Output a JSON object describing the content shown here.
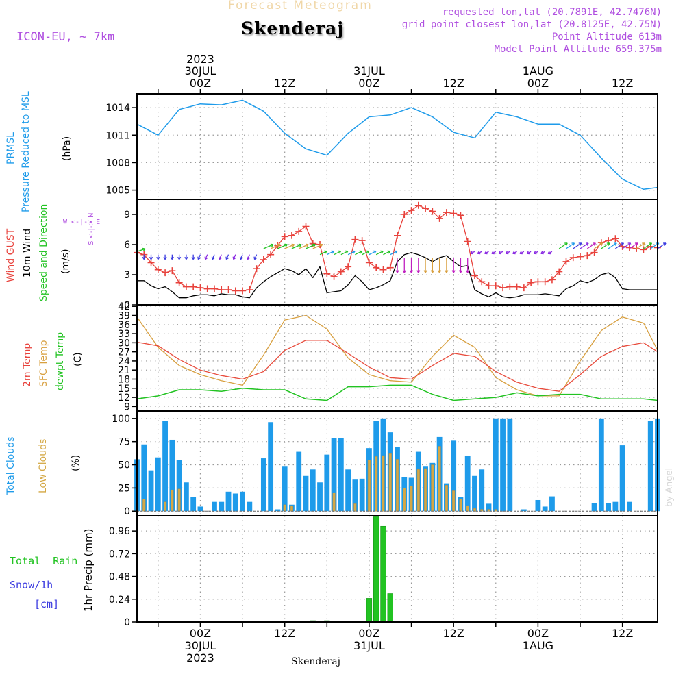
{
  "header": {
    "title_top": "Forecast Meteogram",
    "location": "Skenderaj",
    "model": "ICON-EU, ~ 7km",
    "requested": "requested lon,lat (20.7891E, 42.7476N)",
    "gridpoint": "grid point closest lon,lat (20.8125E, 42.75N)",
    "point_alt": "Point Altitude 613m",
    "model_alt": "Model Point Altitude 659.375m",
    "bottom_label": "Skenderaj",
    "watermark": "by Angel"
  },
  "time_axis": {
    "top_labels": [
      {
        "line1": "2023",
        "line2": "30JUL",
        "line3": "00Z",
        "hour": 24
      },
      {
        "line1": "",
        "line2": "",
        "line3": "12Z",
        "hour": 36
      },
      {
        "line1": "",
        "line2": "31JUL",
        "line3": "00Z",
        "hour": 48
      },
      {
        "line1": "",
        "line2": "",
        "line3": "12Z",
        "hour": 60
      },
      {
        "line1": "",
        "line2": "1AUG",
        "line3": "00Z",
        "hour": 72
      },
      {
        "line1": "",
        "line2": "",
        "line3": "12Z",
        "hour": 84
      }
    ],
    "bottom_labels": [
      {
        "line1": "00Z",
        "line2": "30JUL",
        "line3": "2023",
        "hour": 24
      },
      {
        "line1": "12Z",
        "line2": "",
        "line3": "",
        "hour": 36
      },
      {
        "line1": "00Z",
        "line2": "31JUL",
        "line3": "",
        "hour": 48
      },
      {
        "line1": "12Z",
        "line2": "",
        "line3": "",
        "hour": 60
      },
      {
        "line1": "00Z",
        "line2": "1AUG",
        "line3": "",
        "hour": 72
      },
      {
        "line1": "12Z",
        "line2": "",
        "line3": "",
        "hour": 84
      }
    ]
  },
  "panels": {
    "pressure": {
      "label1": "PRMSL",
      "label2": "Pressure Reduced to MSL",
      "unit": "(hPa)",
      "ticks": [
        "1005",
        "1008",
        "1011",
        "1014"
      ]
    },
    "wind": {
      "label_gust": "Wind GUST",
      "label_10m": "10m Wind",
      "label_speed": "Speed and Direction",
      "unit": "(m/s)",
      "compass_ns": "S <-|-> N",
      "compass_we": "W <-|-> E",
      "ticks": [
        "0",
        "3",
        "6",
        "9"
      ]
    },
    "temp": {
      "label_2m": "2m Temp",
      "label_sfc": "SFC Temp",
      "label_dew": "dewpt Temp",
      "unit": "(C)",
      "ticks": [
        "9",
        "12",
        "15",
        "18",
        "21",
        "24",
        "27",
        "30",
        "33",
        "36",
        "39",
        "42"
      ]
    },
    "clouds": {
      "label_total": "Total Clouds",
      "label_low": "Low Clouds",
      "unit": "(%)",
      "ticks": [
        "0",
        "25",
        "50",
        "75",
        "100"
      ]
    },
    "precip": {
      "label_rain": "Total  Rain",
      "label_snow": "Snow/1h",
      "label_cm": "[cm]",
      "unit": "1hr Precip (mm)",
      "ticks": [
        "0",
        "0.24",
        "0.48",
        "0.72",
        "0.96"
      ]
    }
  },
  "colors": {
    "pressure": "#1e9bea",
    "gust": "#e8423c",
    "wind10": "#000000",
    "temp2m": "#e84b3c",
    "sfc": "#d8a040",
    "dew": "#22c322",
    "total_cloud": "#1e9bea",
    "low_cloud": "#d4a845",
    "rain": "#22c322",
    "title_top": "#f0d7a8",
    "meta": "#b050e0"
  },
  "chart_data": [
    {
      "type": "line",
      "name": "PRMSL",
      "ylim": [
        1004,
        1015.5
      ],
      "x_hours": [
        15,
        18,
        21,
        24,
        27,
        30,
        33,
        36,
        39,
        42,
        45,
        48,
        51,
        54,
        57,
        60,
        63,
        66,
        69,
        72,
        75,
        78,
        81,
        84,
        87,
        89
      ],
      "values": [
        1012.2,
        1011.0,
        1013.8,
        1014.4,
        1014.3,
        1014.8,
        1013.6,
        1011.2,
        1009.5,
        1008.8,
        1011.2,
        1013.0,
        1013.2,
        1014.0,
        1013.0,
        1011.3,
        1010.7,
        1013.5,
        1013.0,
        1012.2,
        1012.2,
        1011.0,
        1008.5,
        1006.2,
        1005.1,
        1005.3
      ]
    },
    {
      "type": "line",
      "name": "Wind GUST",
      "ylim": [
        0,
        10.5
      ],
      "x_hours": [
        15,
        16,
        17,
        18,
        19,
        20,
        21,
        22,
        23,
        24,
        25,
        26,
        27,
        28,
        29,
        30,
        31,
        32,
        33,
        34,
        35,
        36,
        37,
        38,
        39,
        40,
        41,
        42,
        43,
        44,
        45,
        46,
        47,
        48,
        49,
        50,
        51,
        52,
        53,
        54,
        55,
        56,
        57,
        58,
        59,
        60,
        61,
        62,
        63,
        64,
        65,
        66,
        67,
        68,
        69,
        70,
        71,
        72,
        73,
        74,
        75,
        76,
        77,
        78,
        79,
        80,
        81,
        82,
        83,
        84,
        85,
        86,
        87,
        88,
        89
      ],
      "values": [
        5.2,
        5.0,
        4.2,
        3.5,
        3.2,
        3.4,
        2.2,
        1.8,
        1.8,
        1.7,
        1.6,
        1.6,
        1.5,
        1.5,
        1.4,
        1.4,
        1.5,
        3.6,
        4.5,
        5.0,
        5.9,
        6.8,
        6.9,
        7.3,
        7.8,
        6.1,
        6.0,
        3.1,
        2.8,
        3.3,
        3.8,
        6.5,
        6.4,
        4.2,
        3.7,
        3.5,
        3.7,
        6.9,
        9.0,
        9.4,
        9.9,
        9.6,
        9.3,
        8.6,
        9.2,
        9.1,
        8.9,
        6.3,
        2.9,
        2.3,
        1.9,
        1.9,
        1.7,
        1.8,
        1.8,
        1.7,
        2.2,
        2.3,
        2.3,
        2.5,
        3.3,
        4.3,
        4.7,
        4.8,
        4.9,
        5.2,
        6.2,
        6.4,
        6.6,
        5.8,
        5.7,
        5.6,
        5.5,
        5.8,
        5.7
      ]
    },
    {
      "type": "line",
      "name": "10m Wind",
      "ylim": [
        0,
        10.5
      ],
      "x_hours": [
        15,
        16,
        17,
        18,
        19,
        20,
        21,
        22,
        23,
        24,
        25,
        26,
        27,
        28,
        29,
        30,
        31,
        32,
        33,
        34,
        35,
        36,
        37,
        38,
        39,
        40,
        41,
        42,
        43,
        44,
        45,
        46,
        47,
        48,
        49,
        50,
        51,
        52,
        53,
        54,
        55,
        56,
        57,
        58,
        59,
        60,
        61,
        62,
        63,
        64,
        65,
        66,
        67,
        68,
        69,
        70,
        71,
        72,
        73,
        74,
        75,
        76,
        77,
        78,
        79,
        80,
        81,
        82,
        83,
        84,
        85,
        86,
        87,
        88,
        89
      ],
      "values": [
        2.4,
        2.4,
        1.9,
        1.6,
        1.8,
        1.3,
        0.7,
        0.7,
        0.9,
        1.0,
        1.0,
        0.9,
        1.1,
        1.0,
        1.0,
        0.8,
        0.7,
        1.7,
        2.3,
        2.8,
        3.2,
        3.6,
        3.4,
        3.0,
        3.6,
        2.7,
        3.8,
        1.2,
        1.3,
        1.4,
        2.0,
        2.9,
        2.3,
        1.5,
        1.7,
        2.0,
        2.4,
        4.3,
        5.0,
        5.2,
        5.0,
        4.7,
        4.3,
        4.7,
        4.9,
        4.3,
        3.8,
        3.9,
        1.5,
        1.1,
        0.8,
        1.2,
        0.8,
        0.7,
        0.8,
        1.0,
        1.0,
        1.0,
        1.1,
        1.0,
        0.9,
        1.6,
        1.9,
        2.4,
        2.2,
        2.5,
        3.0,
        3.2,
        2.7,
        1.6,
        1.5,
        1.5,
        1.5,
        1.5,
        1.5
      ]
    },
    {
      "type": "line",
      "name": "2m Temp",
      "ylim": [
        7.5,
        42.5
      ],
      "x_hours": [
        15,
        18,
        21,
        24,
        27,
        30,
        33,
        36,
        39,
        42,
        45,
        48,
        51,
        54,
        57,
        60,
        63,
        66,
        69,
        72,
        75,
        78,
        81,
        84,
        87,
        89
      ],
      "values": [
        30.2,
        29.0,
        24.5,
        21.0,
        19.2,
        18.0,
        20.5,
        27.5,
        30.8,
        30.8,
        26.5,
        22.0,
        18.5,
        18.0,
        22.5,
        26.5,
        25.5,
        20.5,
        17.0,
        15.0,
        14.0,
        19.5,
        25.5,
        28.8,
        30.0,
        27.0
      ]
    },
    {
      "type": "line",
      "name": "SFC Temp",
      "ylim": [
        7.5,
        42.5
      ],
      "x_hours": [
        15,
        18,
        21,
        24,
        27,
        30,
        33,
        36,
        39,
        42,
        45,
        48,
        51,
        54,
        57,
        60,
        63,
        66,
        69,
        72,
        75,
        78,
        81,
        84,
        87,
        89
      ],
      "values": [
        38.5,
        28.5,
        22.5,
        19.5,
        17.5,
        16.0,
        26.0,
        37.5,
        39.0,
        34.5,
        25.0,
        19.5,
        17.5,
        17.0,
        25.5,
        32.5,
        28.5,
        18.5,
        14.5,
        12.5,
        12.5,
        24.0,
        34.0,
        38.5,
        36.5,
        27.5
      ]
    },
    {
      "type": "line",
      "name": "dewpt Temp",
      "ylim": [
        7.5,
        42.5
      ],
      "x_hours": [
        15,
        18,
        21,
        24,
        27,
        30,
        33,
        36,
        39,
        42,
        45,
        48,
        51,
        54,
        57,
        60,
        63,
        66,
        69,
        72,
        75,
        78,
        81,
        84,
        87,
        89
      ],
      "values": [
        11.5,
        12.5,
        14.5,
        14.5,
        14.0,
        15.0,
        14.5,
        14.5,
        11.5,
        11.0,
        15.5,
        15.5,
        16.0,
        16.0,
        13.0,
        11.0,
        11.5,
        12.0,
        13.5,
        12.5,
        13.0,
        13.0,
        11.5,
        11.5,
        11.5,
        11.0
      ]
    },
    {
      "type": "bar",
      "name": "Total Clouds",
      "ylim": [
        0,
        100
      ],
      "x_hours": [
        15,
        16,
        17,
        18,
        19,
        20,
        21,
        22,
        23,
        24,
        25,
        26,
        27,
        28,
        29,
        30,
        31,
        32,
        33,
        34,
        35,
        36,
        37,
        38,
        39,
        40,
        41,
        42,
        43,
        44,
        45,
        46,
        47,
        48,
        49,
        50,
        51,
        52,
        53,
        54,
        55,
        56,
        57,
        58,
        59,
        60,
        61,
        62,
        63,
        64,
        65,
        66,
        67,
        68,
        69,
        70,
        71,
        72,
        73,
        74,
        75,
        76,
        77,
        78,
        79,
        80,
        81,
        82,
        83,
        84,
        85,
        86,
        87,
        88,
        89
      ],
      "values": [
        56,
        72,
        44,
        58,
        97,
        77,
        55,
        31,
        15,
        5,
        0,
        10,
        10,
        21,
        19,
        21,
        10,
        0,
        57,
        96,
        2,
        48,
        7,
        64,
        38,
        45,
        31,
        61,
        79,
        79,
        45,
        34,
        35,
        68,
        97,
        100,
        85,
        69,
        37,
        36,
        64,
        48,
        52,
        80,
        30,
        76,
        15,
        60,
        38,
        45,
        8,
        100,
        100,
        100,
        0,
        2,
        0,
        12,
        5,
        16,
        0,
        0,
        0,
        0,
        0,
        9,
        100,
        9,
        10,
        71,
        10,
        0,
        0,
        97,
        100
      ]
    },
    {
      "type": "bar",
      "name": "Low Clouds",
      "ylim": [
        0,
        100
      ],
      "x_hours": [
        15,
        16,
        17,
        18,
        19,
        20,
        21,
        22,
        23,
        24,
        25,
        26,
        27,
        28,
        29,
        30,
        31,
        32,
        33,
        34,
        35,
        36,
        37,
        38,
        39,
        40,
        41,
        42,
        43,
        44,
        45,
        46,
        47,
        48,
        49,
        50,
        51,
        52,
        53,
        54,
        55,
        56,
        57,
        58,
        59,
        60,
        61,
        62,
        63,
        64,
        65,
        66,
        67,
        68,
        69,
        70,
        71,
        72,
        73,
        74,
        75,
        76,
        77,
        78,
        79,
        80,
        81,
        82,
        83,
        84,
        85,
        86,
        87,
        88,
        89
      ],
      "values": [
        8,
        13,
        0,
        0,
        10,
        23,
        24,
        0,
        0,
        0,
        0,
        0,
        0,
        0,
        0,
        0,
        0,
        0,
        0,
        0,
        0,
        7,
        6,
        0,
        0,
        0,
        0,
        0,
        20,
        0,
        0,
        8,
        0,
        55,
        59,
        60,
        62,
        56,
        25,
        27,
        45,
        46,
        50,
        70,
        28,
        22,
        13,
        6,
        3,
        2,
        2,
        2,
        0,
        0,
        0,
        0,
        0,
        0,
        0,
        0,
        0,
        0,
        0,
        0,
        0,
        0,
        0,
        0,
        0,
        0,
        0,
        0,
        0,
        0,
        0
      ]
    },
    {
      "type": "bar",
      "name": "1hr Precip",
      "ylim": [
        0,
        1.1
      ],
      "x_hours": [
        40,
        42,
        48,
        49,
        50,
        51
      ],
      "values": [
        0.005,
        0.01,
        0.25,
        1.11,
        1.01,
        0.3
      ]
    }
  ]
}
